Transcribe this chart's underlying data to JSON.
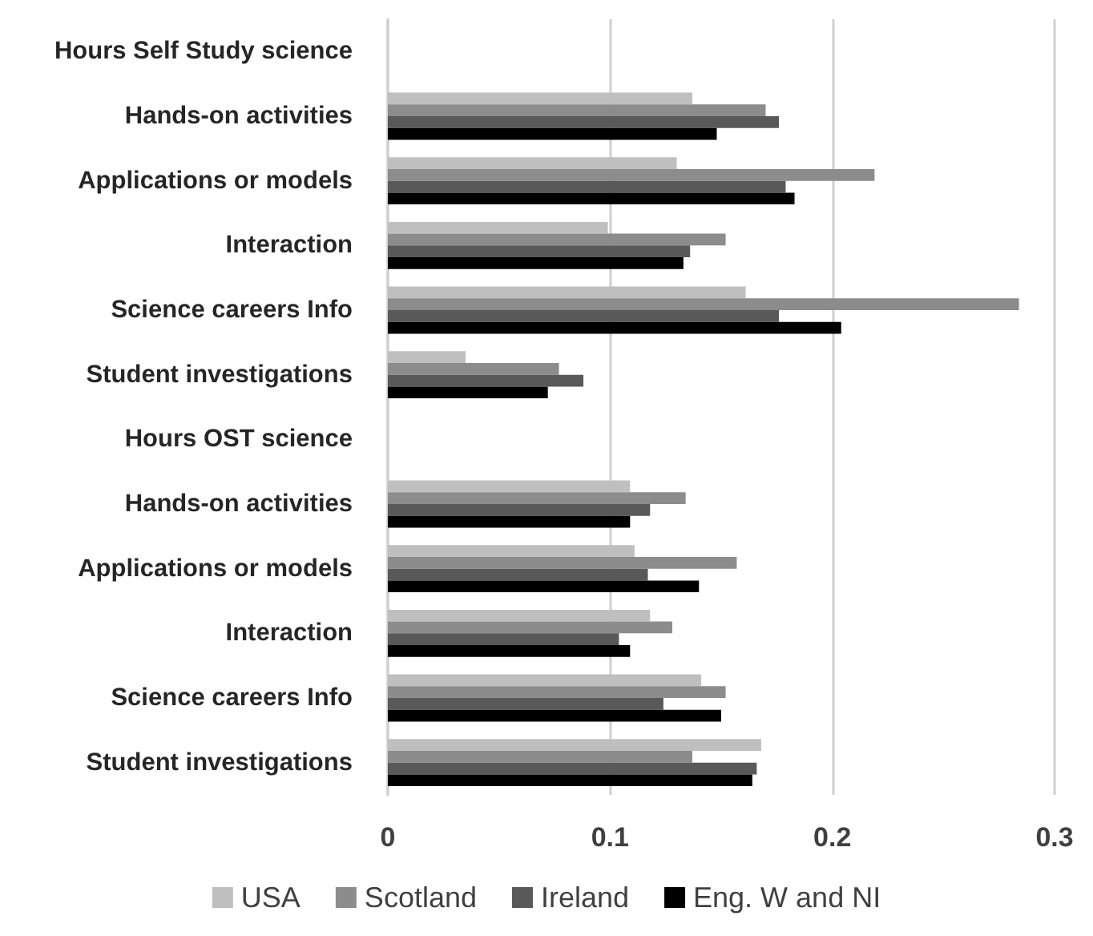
{
  "chart_data": {
    "type": "bar",
    "orientation": "horizontal",
    "categories": [
      "Hours Self Study science",
      "Hands-on activities",
      "Applications or models",
      "Interaction",
      "Science careers Info",
      "Student investigations",
      "Hours OST science",
      "Hands-on activities",
      "Applications or models",
      "Interaction",
      "Science careers Info",
      "Student investigations"
    ],
    "series": [
      {
        "name": "USA",
        "color": "#bfbfbf",
        "values": [
          null,
          0.137,
          0.13,
          0.099,
          0.161,
          0.035,
          null,
          0.109,
          0.111,
          0.118,
          0.141,
          0.168
        ]
      },
      {
        "name": "Scotland",
        "color": "#8c8c8c",
        "values": [
          null,
          0.17,
          0.219,
          0.152,
          0.284,
          0.077,
          null,
          0.134,
          0.157,
          0.128,
          0.152,
          0.137
        ]
      },
      {
        "name": "Ireland",
        "color": "#595959",
        "values": [
          null,
          0.176,
          0.179,
          0.136,
          0.176,
          0.088,
          null,
          0.118,
          0.117,
          0.104,
          0.124,
          0.166
        ]
      },
      {
        "name": "Eng. W and NI",
        "color": "#000000",
        "values": [
          null,
          0.148,
          0.183,
          0.133,
          0.204,
          0.072,
          null,
          0.109,
          0.14,
          0.109,
          0.15,
          0.164
        ]
      }
    ],
    "xlim": [
      0,
      0.3
    ],
    "xticks": [
      0,
      0.1,
      0.2,
      0.3
    ],
    "grid": "x",
    "legend": "bottom"
  }
}
